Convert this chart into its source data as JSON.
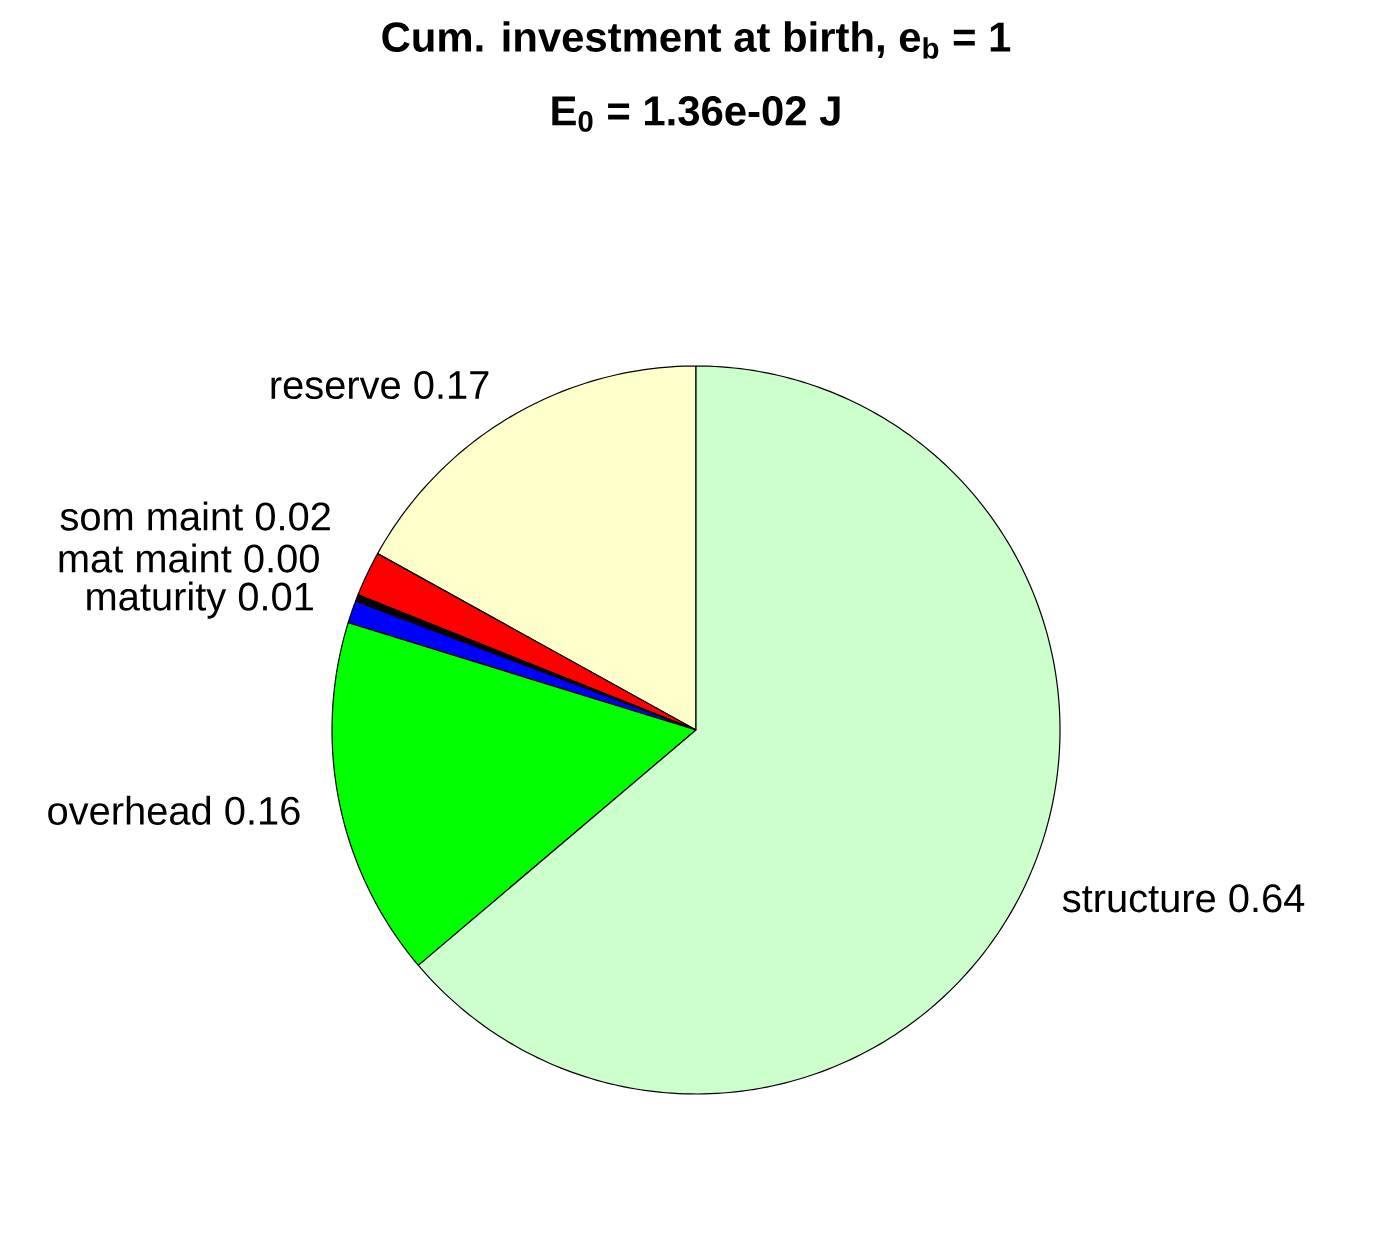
{
  "chart_data": {
    "type": "pie",
    "title": "Cum. investment at birth, e$_{b}$ = 1",
    "subtitle": "E$_{0}$ = 1.36e-02 J",
    "categories": [
      "reserve",
      "som maint",
      "mat maint",
      "maturity",
      "overhead",
      "structure"
    ],
    "values": [
      0.17,
      0.02,
      0.003,
      0.01,
      0.16,
      0.64
    ],
    "value_labels": [
      "0.17",
      "0.02",
      "0.00",
      "0.01",
      "0.16",
      "0.64"
    ],
    "colors": [
      "#ffffcc",
      "#ff0000",
      "#000000",
      "#0000ff",
      "#00ff00",
      "#ccffcc"
    ]
  }
}
